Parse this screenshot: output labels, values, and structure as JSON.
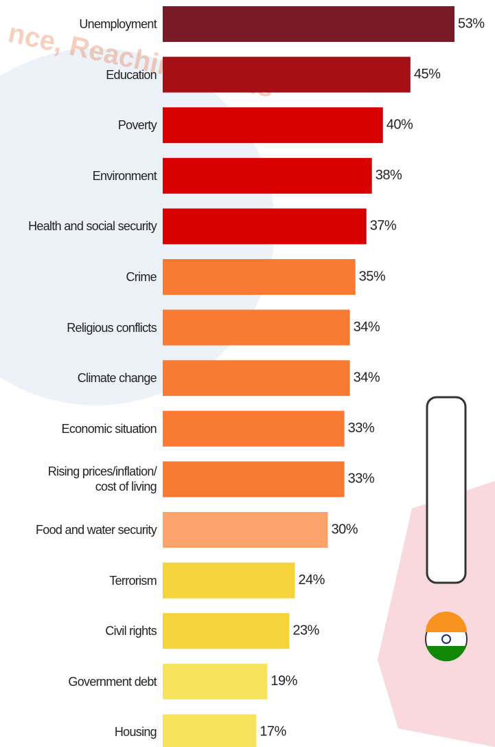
{
  "chart_data": {
    "type": "bar",
    "orientation": "horizontal",
    "watermark": "nce, Reaching Goals",
    "categories": [
      "Unemployment",
      "Education",
      "Poverty",
      "Environment",
      "Health and social security",
      "Crime",
      "Religious conflicts",
      "Climate change",
      "Economic situation",
      "Rising prices/inflation/\ncost of living",
      "Food and water security",
      "Terrorism",
      "Civil rights",
      "Government debt",
      "Housing"
    ],
    "values": [
      53,
      45,
      40,
      38,
      37,
      35,
      34,
      34,
      33,
      33,
      30,
      24,
      23,
      19,
      17
    ],
    "value_labels": [
      "53%",
      "45%",
      "40%",
      "38%",
      "37%",
      "35%",
      "34%",
      "34%",
      "33%",
      "33%",
      "30%",
      "24%",
      "23%",
      "19%",
      "17%"
    ],
    "colors": [
      "#7a1a26",
      "#a50f15",
      "#d90000",
      "#d90000",
      "#d90000",
      "#f97a32",
      "#f97a32",
      "#f97a32",
      "#f97a32",
      "#f97a32",
      "#fca26c",
      "#f5d33a",
      "#f5d33a",
      "#f8e45c",
      "#f8e45c"
    ]
  }
}
